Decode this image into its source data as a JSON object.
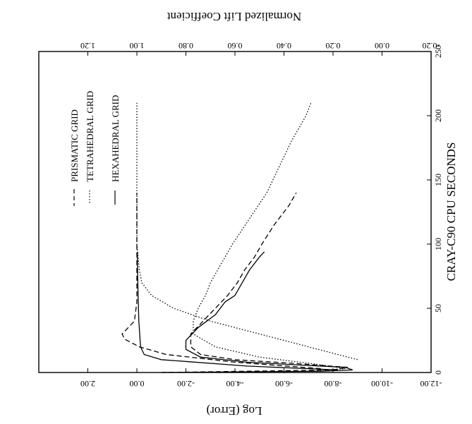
{
  "chart_data": {
    "type": "line",
    "orientation": "rotated-90",
    "x_axis": {
      "label": "CRAY-C90 CPU SECONDS",
      "range": [
        0,
        250
      ],
      "ticks": [
        "0",
        "50",
        "100",
        "150",
        "200",
        "250"
      ]
    },
    "y_left": {
      "label": "Log (Error)",
      "range": [
        -12,
        4
      ],
      "ticks": [
        "2.00",
        "0.00",
        "-2.00",
        "-4.00",
        "-6.00",
        "-8.00",
        "-10.00",
        "-12.00"
      ]
    },
    "y_right": {
      "label": "Normalized Lift Coefficient",
      "range": [
        -0.2,
        1.4
      ],
      "ticks": [
        "1.20",
        "1.00",
        "0.80",
        "0.60",
        "0.40",
        "0.20",
        "0.00",
        "-0.20"
      ]
    },
    "legend": [
      "HEXAHEDRAL GRID",
      "PRISMATIC GRID",
      "TETRAHEDRAL GRID"
    ],
    "series": [
      {
        "name": "HEXAHEDRAL GRID",
        "kind": "error",
        "dash": "solid",
        "points": [
          [
            0,
            -1
          ],
          [
            1,
            -7.5
          ],
          [
            2,
            -8.8
          ],
          [
            4,
            -8.5
          ],
          [
            6,
            -6.5
          ],
          [
            8,
            -4.5
          ],
          [
            12,
            -2.6
          ],
          [
            18,
            -2.0
          ],
          [
            25,
            -2.0
          ],
          [
            35,
            -2.5
          ],
          [
            45,
            -3.2
          ],
          [
            55,
            -3.6
          ],
          [
            60,
            -4.0
          ],
          [
            70,
            -4.3
          ],
          [
            80,
            -4.6
          ],
          [
            90,
            -5.0
          ],
          [
            94,
            -5.2
          ]
        ]
      },
      {
        "name": "HEXAHEDRAL GRID",
        "kind": "lift",
        "dash": "solid",
        "points": [
          [
            2,
            0.18
          ],
          [
            5,
            0.55
          ],
          [
            10,
            0.9
          ],
          [
            14,
            0.97
          ],
          [
            20,
            0.985
          ],
          [
            40,
            0.992
          ],
          [
            60,
            0.995
          ],
          [
            80,
            0.997
          ],
          [
            94,
            0.998
          ]
        ]
      },
      {
        "name": "PRISMATIC GRID",
        "kind": "error",
        "dash": "dashed",
        "points": [
          [
            0,
            -1
          ],
          [
            2,
            -8.0
          ],
          [
            4,
            -8.6
          ],
          [
            7,
            -6.5
          ],
          [
            10,
            -4.0
          ],
          [
            14,
            -2.6
          ],
          [
            20,
            -2.2
          ],
          [
            30,
            -2.2
          ],
          [
            40,
            -2.7
          ],
          [
            50,
            -3.2
          ],
          [
            60,
            -3.7
          ],
          [
            70,
            -4.1
          ],
          [
            80,
            -4.4
          ],
          [
            90,
            -4.8
          ],
          [
            100,
            -5.1
          ],
          [
            115,
            -5.6
          ],
          [
            130,
            -6.2
          ],
          [
            140,
            -6.5
          ]
        ]
      },
      {
        "name": "PRISMATIC GRID",
        "kind": "lift",
        "dash": "dashed",
        "points": [
          [
            3,
            0.25
          ],
          [
            8,
            0.6
          ],
          [
            14,
            0.88
          ],
          [
            20,
            0.99
          ],
          [
            26,
            1.05
          ],
          [
            30,
            1.06
          ],
          [
            34,
            1.04
          ],
          [
            40,
            1.01
          ],
          [
            55,
            1.0
          ],
          [
            80,
            1.0
          ],
          [
            110,
            1.0
          ],
          [
            140,
            1.0
          ]
        ]
      },
      {
        "name": "TETRAHEDRAL GRID",
        "kind": "error",
        "dash": "dotted",
        "points": [
          [
            1,
            -7.0
          ],
          [
            3,
            -8.5
          ],
          [
            6,
            -7.5
          ],
          [
            12,
            -5.0
          ],
          [
            20,
            -3.2
          ],
          [
            30,
            -2.3
          ],
          [
            40,
            -2.3
          ],
          [
            50,
            -2.5
          ],
          [
            60,
            -2.8
          ],
          [
            70,
            -3.0
          ],
          [
            80,
            -3.3
          ],
          [
            90,
            -3.6
          ],
          [
            100,
            -3.9
          ],
          [
            120,
            -4.6
          ],
          [
            140,
            -5.3
          ],
          [
            160,
            -5.8
          ],
          [
            180,
            -6.3
          ],
          [
            200,
            -6.9
          ],
          [
            210,
            -7.1
          ]
        ]
      },
      {
        "name": "TETRAHEDRAL GRID",
        "kind": "lift",
        "dash": "dotted",
        "points": [
          [
            10,
            0.1
          ],
          [
            20,
            0.3
          ],
          [
            30,
            0.5
          ],
          [
            40,
            0.7
          ],
          [
            50,
            0.85
          ],
          [
            60,
            0.94
          ],
          [
            70,
            0.98
          ],
          [
            80,
            0.99
          ],
          [
            100,
            1.0
          ],
          [
            150,
            1.0
          ],
          [
            210,
            1.0
          ]
        ]
      }
    ]
  }
}
